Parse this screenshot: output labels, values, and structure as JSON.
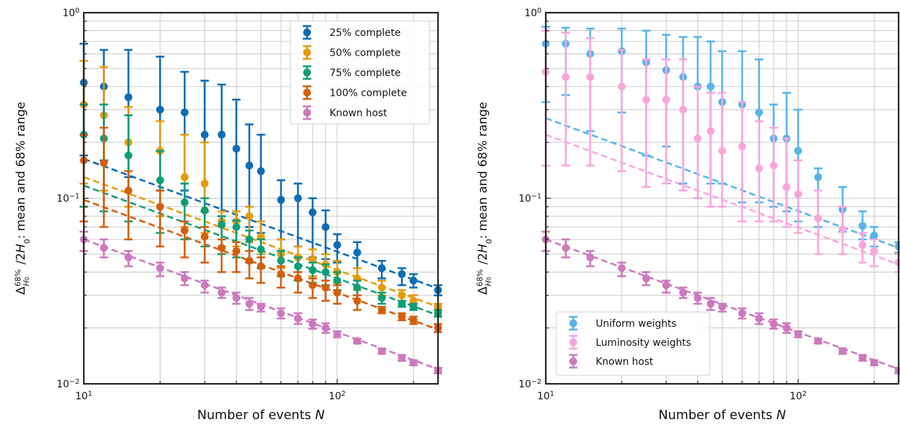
{
  "chart_data": [
    {
      "type": "scatter",
      "xlabel": "Number of events N",
      "ylabel": "Δ^68%_H0 / 2H0: mean and 68% range",
      "xscale": "log",
      "yscale": "log",
      "xlim": [
        10,
        250
      ],
      "ylim": [
        0.01,
        1
      ],
      "x_ticks": [
        "10^1",
        "10^2"
      ],
      "y_ticks": [
        "10^-2",
        "10^-1",
        "10^0"
      ],
      "grid": true,
      "legend_position": "top-right",
      "series": [
        {
          "name": "25% complete",
          "color": "#0c6cb4",
          "points": [
            [
              10,
              0.42,
              0.17,
              0.68
            ],
            [
              12,
              0.4,
              0.16,
              0.63
            ],
            [
              15,
              0.35,
              0.13,
              0.63
            ],
            [
              20,
              0.3,
              0.11,
              0.58
            ],
            [
              25,
              0.29,
              0.11,
              0.48
            ],
            [
              30,
              0.22,
              0.085,
              0.43
            ],
            [
              35,
              0.22,
              0.08,
              0.41
            ],
            [
              40,
              0.185,
              0.075,
              0.34
            ],
            [
              45,
              0.15,
              0.07,
              0.25
            ],
            [
              50,
              0.14,
              0.065,
              0.22
            ],
            [
              60,
              0.098,
              0.06,
              0.125
            ],
            [
              70,
              0.1,
              0.055,
              0.12
            ],
            [
              80,
              0.084,
              0.048,
              0.1
            ],
            [
              90,
              0.07,
              0.047,
              0.086
            ],
            [
              100,
              0.056,
              0.045,
              0.064
            ],
            [
              120,
              0.051,
              0.042,
              0.058
            ],
            [
              150,
              0.042,
              0.037,
              0.046
            ],
            [
              180,
              0.039,
              0.034,
              0.042
            ],
            [
              200,
              0.036,
              0.033,
              0.039
            ],
            [
              250,
              0.032,
              0.03,
              0.034
            ]
          ],
          "fit": [
            0.163,
            0.5
          ]
        },
        {
          "name": "50% complete",
          "color": "#e39b0c",
          "points": [
            [
              10,
              0.32,
              0.12,
              0.55
            ],
            [
              12,
              0.28,
              0.11,
              0.51
            ],
            [
              15,
              0.2,
              0.09,
              0.31
            ],
            [
              20,
              0.18,
              0.08,
              0.26
            ],
            [
              25,
              0.13,
              0.07,
              0.22
            ],
            [
              30,
              0.12,
              0.065,
              0.2
            ],
            [
              35,
              0.075,
              0.055,
              0.085
            ],
            [
              40,
              0.075,
              0.055,
              0.085
            ],
            [
              45,
              0.08,
              0.058,
              0.09
            ],
            [
              50,
              0.062,
              0.05,
              0.075
            ],
            [
              60,
              0.05,
              0.042,
              0.06
            ],
            [
              70,
              0.048,
              0.04,
              0.055
            ],
            [
              80,
              0.047,
              0.038,
              0.053
            ],
            [
              90,
              0.044,
              0.036,
              0.05
            ],
            [
              100,
              0.04,
              0.035,
              0.046
            ],
            [
              120,
              0.037,
              0.032,
              0.042
            ],
            [
              150,
              0.033,
              0.03,
              0.036
            ],
            [
              180,
              0.03,
              0.028,
              0.032
            ],
            [
              200,
              0.028,
              0.027,
              0.03
            ],
            [
              250,
              0.026,
              0.025,
              0.027
            ]
          ],
          "fit": [
            0.13,
            0.5
          ]
        },
        {
          "name": "75% complete",
          "color": "#0f9e73",
          "points": [
            [
              10,
              0.22,
              0.09,
              0.32
            ],
            [
              12,
              0.21,
              0.085,
              0.32
            ],
            [
              15,
              0.17,
              0.075,
              0.28
            ],
            [
              20,
              0.125,
              0.065,
              0.18
            ],
            [
              25,
              0.095,
              0.06,
              0.12
            ],
            [
              30,
              0.086,
              0.055,
              0.1
            ],
            [
              35,
              0.072,
              0.05,
              0.08
            ],
            [
              40,
              0.07,
              0.048,
              0.076
            ],
            [
              45,
              0.06,
              0.045,
              0.067
            ],
            [
              50,
              0.053,
              0.042,
              0.06
            ],
            [
              60,
              0.046,
              0.038,
              0.052
            ],
            [
              70,
              0.043,
              0.036,
              0.048
            ],
            [
              80,
              0.041,
              0.035,
              0.045
            ],
            [
              90,
              0.04,
              0.034,
              0.044
            ],
            [
              100,
              0.036,
              0.032,
              0.04
            ],
            [
              120,
              0.033,
              0.03,
              0.036
            ],
            [
              150,
              0.029,
              0.027,
              0.031
            ],
            [
              180,
              0.027,
              0.026,
              0.028
            ],
            [
              200,
              0.026,
              0.025,
              0.027
            ],
            [
              250,
              0.024,
              0.023,
              0.025
            ]
          ],
          "fit": [
            0.117,
            0.5
          ]
        },
        {
          "name": "100% complete",
          "color": "#d45e0c",
          "points": [
            [
              10,
              0.16,
              0.075,
              0.22
            ],
            [
              12,
              0.155,
              0.07,
              0.24
            ],
            [
              15,
              0.11,
              0.06,
              0.14
            ],
            [
              20,
              0.09,
              0.055,
              0.11
            ],
            [
              25,
              0.067,
              0.048,
              0.075
            ],
            [
              30,
              0.062,
              0.045,
              0.07
            ],
            [
              35,
              0.054,
              0.04,
              0.06
            ],
            [
              40,
              0.052,
              0.04,
              0.058
            ],
            [
              45,
              0.046,
              0.037,
              0.052
            ],
            [
              50,
              0.043,
              0.035,
              0.048
            ],
            [
              60,
              0.039,
              0.033,
              0.043
            ],
            [
              70,
              0.037,
              0.031,
              0.04
            ],
            [
              80,
              0.034,
              0.029,
              0.037
            ],
            [
              90,
              0.033,
              0.028,
              0.036
            ],
            [
              100,
              0.031,
              0.027,
              0.034
            ],
            [
              120,
              0.028,
              0.025,
              0.03
            ],
            [
              150,
              0.025,
              0.024,
              0.026
            ],
            [
              180,
              0.023,
              0.022,
              0.024
            ],
            [
              200,
              0.022,
              0.021,
              0.023
            ],
            [
              250,
              0.02,
              0.019,
              0.021
            ]
          ],
          "fit": [
            0.098,
            0.5
          ]
        },
        {
          "name": "Known host",
          "color": "#cc79be",
          "points": [
            [
              10,
              0.06,
              0.052,
              0.066
            ],
            [
              12,
              0.054,
              0.048,
              0.06
            ],
            [
              15,
              0.048,
              0.043,
              0.052
            ],
            [
              20,
              0.042,
              0.038,
              0.045
            ],
            [
              25,
              0.037,
              0.034,
              0.04
            ],
            [
              30,
              0.034,
              0.031,
              0.036
            ],
            [
              35,
              0.031,
              0.029,
              0.033
            ],
            [
              40,
              0.029,
              0.027,
              0.031
            ],
            [
              45,
              0.027,
              0.025,
              0.029
            ],
            [
              50,
              0.026,
              0.0245,
              0.027
            ],
            [
              60,
              0.024,
              0.0225,
              0.0255
            ],
            [
              70,
              0.0225,
              0.021,
              0.024
            ],
            [
              80,
              0.021,
              0.0198,
              0.0222
            ],
            [
              90,
              0.02,
              0.0188,
              0.0212
            ],
            [
              100,
              0.0185,
              0.0178,
              0.0192
            ],
            [
              120,
              0.017,
              0.0165,
              0.0175
            ],
            [
              150,
              0.015,
              0.0145,
              0.0155
            ],
            [
              180,
              0.0138,
              0.0133,
              0.0143
            ],
            [
              200,
              0.013,
              0.0126,
              0.0134
            ],
            [
              250,
              0.0118,
              0.0114,
              0.0122
            ]
          ],
          "fit": [
            0.06,
            0.5
          ]
        }
      ]
    },
    {
      "type": "scatter",
      "xlabel": "Number of events N",
      "ylabel": "Δ^68%_H0 / 2H0: mean and 68% range",
      "xscale": "log",
      "yscale": "log",
      "xlim": [
        10,
        250
      ],
      "ylim": [
        0.01,
        1
      ],
      "x_ticks": [
        "10^1",
        "10^2"
      ],
      "y_ticks": [
        "10^-2",
        "10^-1",
        "10^0"
      ],
      "grid": true,
      "legend_position": "bottom-left",
      "series": [
        {
          "name": "Uniform weights",
          "color": "#56b4e9",
          "points": [
            [
              10,
              0.68,
              0.33,
              0.84
            ],
            [
              12,
              0.68,
              0.36,
              0.83
            ],
            [
              15,
              0.6,
              0.23,
              0.82
            ],
            [
              20,
              0.62,
              0.29,
              0.82
            ],
            [
              25,
              0.54,
              0.17,
              0.8
            ],
            [
              30,
              0.49,
              0.19,
              0.76
            ],
            [
              35,
              0.45,
              0.12,
              0.74
            ],
            [
              40,
              0.4,
              0.1,
              0.74
            ],
            [
              45,
              0.4,
              0.12,
              0.7
            ],
            [
              50,
              0.33,
              0.12,
              0.62
            ],
            [
              60,
              0.32,
              0.095,
              0.62
            ],
            [
              70,
              0.29,
              0.095,
              0.56
            ],
            [
              80,
              0.21,
              0.09,
              0.32
            ],
            [
              90,
              0.21,
              0.085,
              0.37
            ],
            [
              100,
              0.18,
              0.075,
              0.3
            ],
            [
              120,
              0.13,
              0.07,
              0.145
            ],
            [
              150,
              0.087,
              0.066,
              0.115
            ],
            [
              180,
              0.071,
              0.06,
              0.085
            ],
            [
              200,
              0.063,
              0.055,
              0.07
            ],
            [
              250,
              0.055,
              0.051,
              0.058
            ]
          ],
          "fit": [
            0.27,
            0.5
          ]
        },
        {
          "name": "Luminosity weights",
          "color": "#f7a6dc",
          "points": [
            [
              10,
              0.48,
              0.15,
              0.8
            ],
            [
              12,
              0.45,
              0.15,
              0.78
            ],
            [
              15,
              0.45,
              0.15,
              0.73
            ],
            [
              20,
              0.4,
              0.14,
              0.63
            ],
            [
              25,
              0.34,
              0.115,
              0.56
            ],
            [
              30,
              0.34,
              0.12,
              0.56
            ],
            [
              35,
              0.3,
              0.11,
              0.56
            ],
            [
              40,
              0.21,
              0.1,
              0.4
            ],
            [
              45,
              0.23,
              0.09,
              0.37
            ],
            [
              50,
              0.18,
              0.09,
              0.37
            ],
            [
              60,
              0.19,
              0.075,
              0.33
            ],
            [
              70,
              0.145,
              0.075,
              0.26
            ],
            [
              80,
              0.15,
              0.075,
              0.24
            ],
            [
              90,
              0.115,
              0.07,
              0.21
            ],
            [
              100,
              0.105,
              0.065,
              0.16
            ],
            [
              120,
              0.078,
              0.05,
              0.11
            ],
            [
              150,
              0.068,
              0.05,
              0.09
            ],
            [
              180,
              0.056,
              0.045,
              0.065
            ],
            [
              200,
              0.052,
              0.043,
              0.06
            ],
            [
              250,
              0.045,
              0.04,
              0.05
            ]
          ],
          "fit": [
            0.22,
            0.5
          ]
        },
        {
          "name": "Known host",
          "color": "#cc79be",
          "points": [
            [
              10,
              0.06,
              0.052,
              0.066
            ],
            [
              12,
              0.054,
              0.048,
              0.06
            ],
            [
              15,
              0.048,
              0.043,
              0.052
            ],
            [
              20,
              0.042,
              0.038,
              0.045
            ],
            [
              25,
              0.037,
              0.034,
              0.04
            ],
            [
              30,
              0.034,
              0.031,
              0.036
            ],
            [
              35,
              0.031,
              0.029,
              0.033
            ],
            [
              40,
              0.029,
              0.027,
              0.031
            ],
            [
              45,
              0.027,
              0.025,
              0.029
            ],
            [
              50,
              0.026,
              0.0245,
              0.027
            ],
            [
              60,
              0.024,
              0.0225,
              0.0255
            ],
            [
              70,
              0.0225,
              0.021,
              0.024
            ],
            [
              80,
              0.021,
              0.0198,
              0.0222
            ],
            [
              90,
              0.02,
              0.0188,
              0.0212
            ],
            [
              100,
              0.0185,
              0.0178,
              0.0192
            ],
            [
              120,
              0.017,
              0.0165,
              0.0175
            ],
            [
              150,
              0.015,
              0.0145,
              0.0155
            ],
            [
              180,
              0.0138,
              0.0133,
              0.0143
            ],
            [
              200,
              0.013,
              0.0126,
              0.0134
            ],
            [
              250,
              0.0118,
              0.0114,
              0.0122
            ]
          ],
          "fit": [
            0.06,
            0.5
          ]
        }
      ]
    }
  ]
}
